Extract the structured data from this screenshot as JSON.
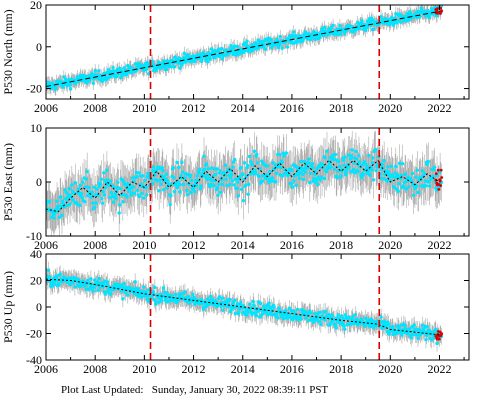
{
  "footer": {
    "label": "Plot Last Updated:",
    "value": "Sunday, January 30, 2022 08:39:11 PST"
  },
  "colors": {
    "data": "#00e5ff",
    "errorbar": "#aaaaaa",
    "trend": "#000000",
    "event_line": "#dd0000",
    "recent": "#dd0000"
  },
  "chart_data": [
    {
      "type": "scatter",
      "ylabel": "P530 North (mm)",
      "xlim": [
        2006,
        2023.2
      ],
      "ylim": [
        -25,
        20
      ],
      "xticks": [
        2006,
        2008,
        2010,
        2012,
        2014,
        2016,
        2018,
        2020,
        2022
      ],
      "yticks": [
        -20,
        0,
        20
      ],
      "event_lines_x": [
        2010.25,
        2019.55
      ],
      "trend": {
        "x": [
          2006,
          2022
        ],
        "y": [
          -19,
          17
        ]
      },
      "scatter_std": 2.0,
      "series": [
        {
          "values_note": ""
        }
      ]
    },
    {
      "type": "scatter",
      "ylabel": "P530 East (mm)",
      "xlim": [
        2006,
        2023.2
      ],
      "ylim": [
        -10,
        10
      ],
      "xticks": [
        2006,
        2008,
        2010,
        2012,
        2014,
        2016,
        2018,
        2020,
        2022
      ],
      "yticks": [
        -10,
        0,
        10
      ],
      "event_lines_x": [
        2010.25,
        2019.55
      ],
      "trend": {
        "x": [
          2006,
          2006.5,
          2007,
          2007.5,
          2008,
          2008.5,
          2009,
          2009.5,
          2010,
          2010.5,
          2011,
          2011.5,
          2012,
          2012.5,
          2013,
          2013.5,
          2014,
          2014.5,
          2015,
          2015.5,
          2016,
          2016.5,
          2017,
          2017.5,
          2018,
          2018.5,
          2019,
          2019.5,
          2020,
          2020.5,
          2021,
          2021.5,
          2022
        ],
        "y": [
          -5,
          -5.5,
          -3,
          -1,
          -3,
          0,
          -2.5,
          0,
          -1,
          2,
          -1,
          1,
          -1,
          2,
          0,
          2.5,
          0,
          3,
          1,
          3.5,
          1,
          3.5,
          1.5,
          4,
          2,
          4,
          2,
          4,
          0,
          1,
          -0.5,
          1.5,
          0
        ]
      },
      "scatter_std": 2.2,
      "series": [
        {
          "values_note": ""
        }
      ]
    },
    {
      "type": "scatter",
      "ylabel": "P530 Up (mm)",
      "xlim": [
        2006,
        2023.2
      ],
      "ylim": [
        -40,
        40
      ],
      "xticks": [
        2006,
        2008,
        2010,
        2012,
        2014,
        2016,
        2018,
        2020,
        2022
      ],
      "yticks": [
        -40,
        -20,
        0,
        20,
        40
      ],
      "event_lines_x": [
        2010.25,
        2019.55
      ],
      "trend": {
        "x": [
          2006,
          2007,
          2008,
          2010,
          2012,
          2014,
          2016,
          2018,
          2019.5,
          2020,
          2022
        ],
        "y": [
          21,
          20,
          17,
          10,
          5,
          0,
          -5,
          -10,
          -13,
          -17,
          -21
        ]
      },
      "scatter_std": 4.0,
      "series": [
        {
          "values_note": ""
        }
      ]
    }
  ]
}
